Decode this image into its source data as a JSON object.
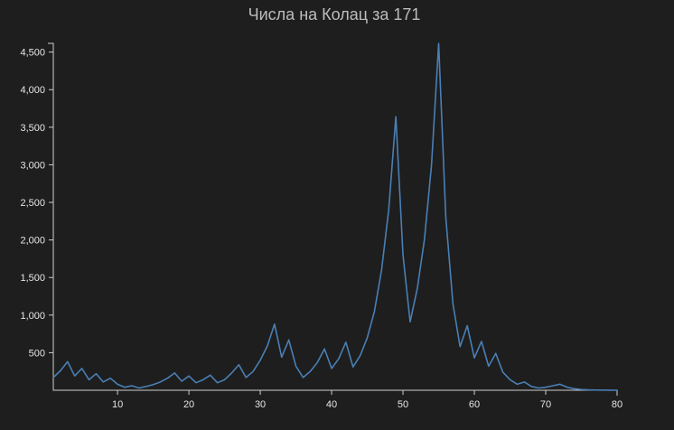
{
  "chart_data": {
    "type": "line",
    "title": "Числа на Колац за 171",
    "xlabel": "",
    "ylabel": "",
    "xlim": [
      1,
      80
    ],
    "ylim": [
      0,
      4616
    ],
    "x_ticks": [
      10,
      20,
      30,
      40,
      50,
      60,
      70,
      80
    ],
    "y_ticks": [
      500,
      1000,
      1500,
      2000,
      2500,
      3000,
      3500,
      4000,
      4500
    ],
    "x_tick_labels": [
      "10",
      "20",
      "30",
      "40",
      "50",
      "60",
      "70",
      "80"
    ],
    "y_tick_labels": [
      "500",
      "1,000",
      "1,500",
      "2,000",
      "2,500",
      "3,000",
      "3,500",
      "4,000",
      "4,500"
    ],
    "line_color": "#4a7fb5",
    "series": [
      {
        "x": [
          1,
          2,
          3,
          4,
          5,
          6,
          7,
          8,
          9,
          10,
          11,
          12,
          13,
          14,
          15,
          16,
          17,
          18,
          19,
          20,
          21,
          22,
          23,
          24,
          25,
          26,
          27,
          28,
          29,
          30,
          31,
          32,
          33,
          34,
          35,
          36,
          37,
          38,
          39,
          40,
          41,
          42,
          43,
          44,
          45,
          46,
          47,
          48,
          49,
          50,
          51,
          52,
          53,
          54,
          55,
          56,
          57,
          58,
          59,
          60,
          61,
          62,
          63,
          64,
          65,
          66,
          67,
          68,
          69,
          70,
          71,
          72,
          73,
          74,
          75,
          76,
          77,
          78,
          79,
          80
        ],
        "y": [
          170,
          260,
          380,
          190,
          290,
          140,
          220,
          110,
          160,
          80,
          40,
          60,
          30,
          50,
          75,
          110,
          160,
          230,
          120,
          190,
          100,
          140,
          200,
          100,
          140,
          230,
          340,
          170,
          250,
          400,
          590,
          880,
          440,
          670,
          320,
          170,
          250,
          370,
          550,
          290,
          420,
          640,
          310,
          460,
          700,
          1050,
          1600,
          2400,
          3640,
          1800,
          910,
          1350,
          2000,
          3000,
          4616,
          2300,
          1150,
          580,
          860,
          430,
          650,
          320,
          490,
          240,
          140,
          80,
          110,
          50,
          30,
          40,
          60,
          80,
          40,
          20,
          10,
          5,
          3,
          2,
          1,
          0
        ]
      }
    ]
  }
}
